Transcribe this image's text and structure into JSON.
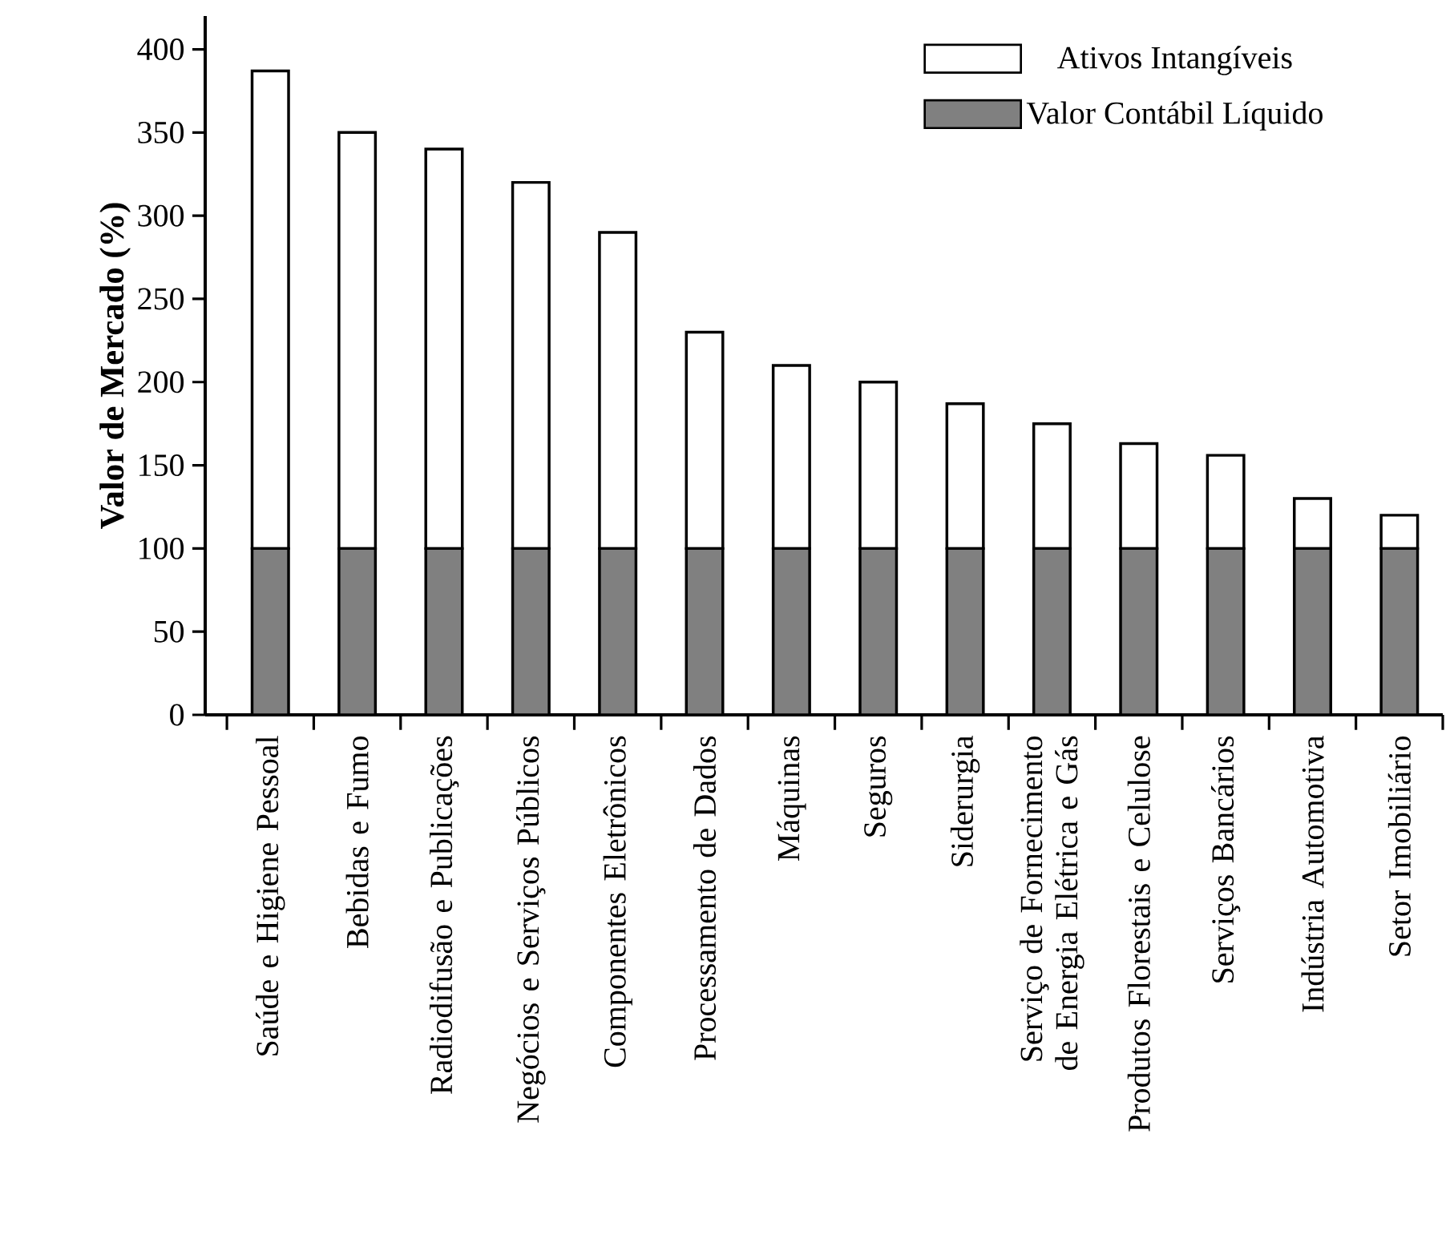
{
  "chart_data": {
    "type": "bar",
    "stacked": true,
    "ylabel": "Valor de Mercado (%)",
    "categories": [
      "Saúde e Higiene Pessoal",
      "Bebidas e Fumo",
      "Radiodifusão e Publicações",
      "Negócios e Serviços Públicos",
      "Componentes Eletrônicos",
      "Processamento de Dados",
      "Máquinas",
      "Seguros",
      "Siderurgia",
      "Serviço de Fornecimento de Energia Elétrica e Gás",
      "Produtos Florestais e Celulose",
      "Serviços Bancários",
      "Indústria Automotiva",
      "Setor Imobiliário"
    ],
    "series": [
      {
        "name": "Valor Contábil Líquido",
        "color": "#808080",
        "values": [
          100,
          100,
          100,
          100,
          100,
          100,
          100,
          100,
          100,
          100,
          100,
          100,
          100,
          100
        ]
      },
      {
        "name": "Ativos Intangíveis",
        "color": "#ffffff",
        "values": [
          287,
          250,
          240,
          220,
          190,
          130,
          110,
          100,
          87,
          75,
          63,
          56,
          30,
          20
        ]
      }
    ],
    "ylim": [
      0,
      420
    ],
    "yticks": [
      0,
      50,
      100,
      150,
      200,
      250,
      300,
      350,
      400
    ],
    "legend": "top right",
    "grid": false
  }
}
